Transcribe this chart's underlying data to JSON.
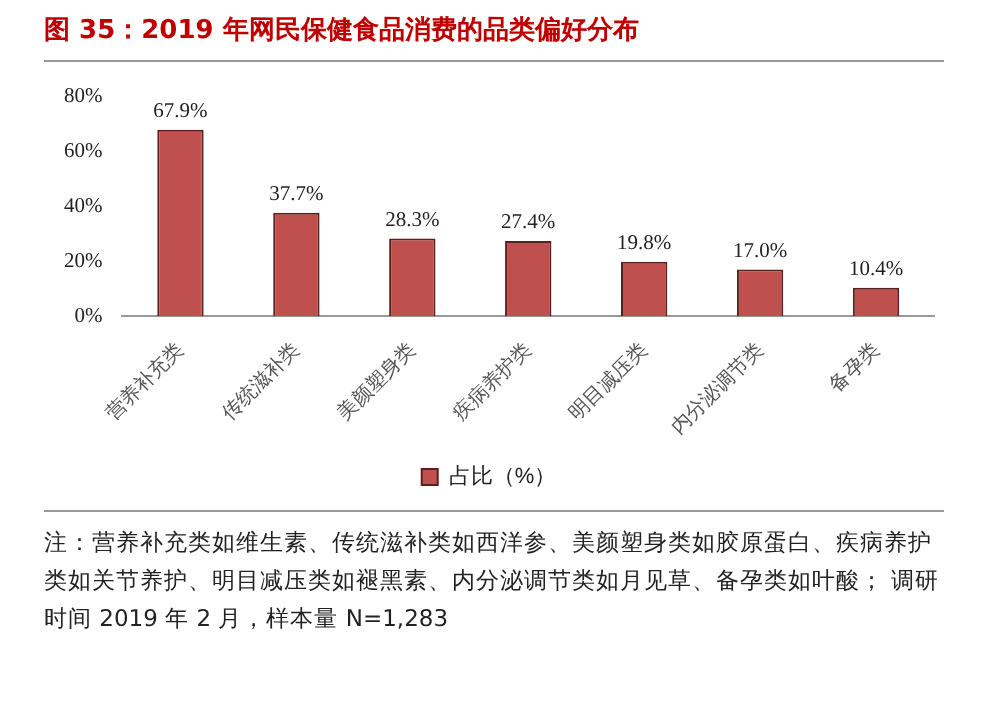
{
  "chart_data": {
    "type": "bar",
    "title": "图 35：2019 年网民保健食品消费的品类偏好分布",
    "categories": [
      "营养补充类",
      "传统滋补类",
      "美颜塑身类",
      "疾病养护类",
      "明目减压类",
      "内分泌调节类",
      "备孕类"
    ],
    "series": [
      {
        "name": "占比（%）",
        "color": "#c0504d",
        "values": [
          67.9,
          37.7,
          28.3,
          27.4,
          19.8,
          17.0,
          10.4
        ]
      }
    ],
    "value_labels": [
      "67.9%",
      "37.7%",
      "28.3%",
      "27.4%",
      "19.8%",
      "17.0%",
      "10.4%"
    ],
    "ylim": [
      0,
      80
    ],
    "yticks": [
      {
        "value": 0,
        "label": "0%"
      },
      {
        "value": 20,
        "label": "20%"
      },
      {
        "value": 40,
        "label": "40%"
      },
      {
        "value": 60,
        "label": "60%"
      },
      {
        "value": 80,
        "label": "80%"
      }
    ],
    "grid": false,
    "legend": "bottom",
    "annotations": [
      "注：营养补充类如维生素、传统滋补类如西洋参、美颜塑身类如胶原蛋白、疾病养护类如关节养护、明目减压类如褪黑素、内分泌调节类如月见草、备孕类如叶酸； 调研时间 2019 年 2 月，样本量 N=1,283"
    ]
  }
}
